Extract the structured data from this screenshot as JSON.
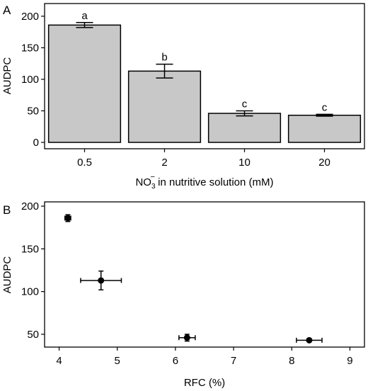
{
  "chart_data": [
    {
      "panel": "A",
      "type": "bar",
      "categories": [
        "0.5",
        "2",
        "10",
        "20"
      ],
      "values": [
        186,
        113,
        46,
        43
      ],
      "errors": [
        4,
        11,
        4,
        1.5
      ],
      "significance_labels": [
        "a",
        "b",
        "c",
        "c"
      ],
      "title": "",
      "xlabel_main": "NO",
      "xlabel_sub": "3",
      "xlabel_sup": "−",
      "xlabel_rest": " in nutritive solution (mM)",
      "ylabel": "AUDPC",
      "ylim": [
        0,
        210
      ],
      "yticks": [
        0,
        50,
        100,
        150,
        200
      ],
      "fill_color": "#c8c8c8",
      "grid": false
    },
    {
      "panel": "B",
      "type": "scatter",
      "points": [
        {
          "x": 4.15,
          "y": 186,
          "xerr": 0.05,
          "yerr": 4
        },
        {
          "x": 4.72,
          "y": 113,
          "xerr": 0.35,
          "yerr": 11
        },
        {
          "x": 6.2,
          "y": 46,
          "xerr": 0.14,
          "yerr": 4
        },
        {
          "x": 8.3,
          "y": 43,
          "xerr": 0.22,
          "yerr": 1.5
        }
      ],
      "title": "",
      "xlabel": "RFC (%)",
      "ylabel": "AUDPC",
      "xlim": [
        3.75,
        9.25
      ],
      "ylim": [
        35,
        205
      ],
      "xticks": [
        4,
        5,
        6,
        7,
        8,
        9
      ],
      "yticks": [
        50,
        100,
        150,
        200
      ],
      "point_color": "#000000",
      "grid": false
    }
  ]
}
